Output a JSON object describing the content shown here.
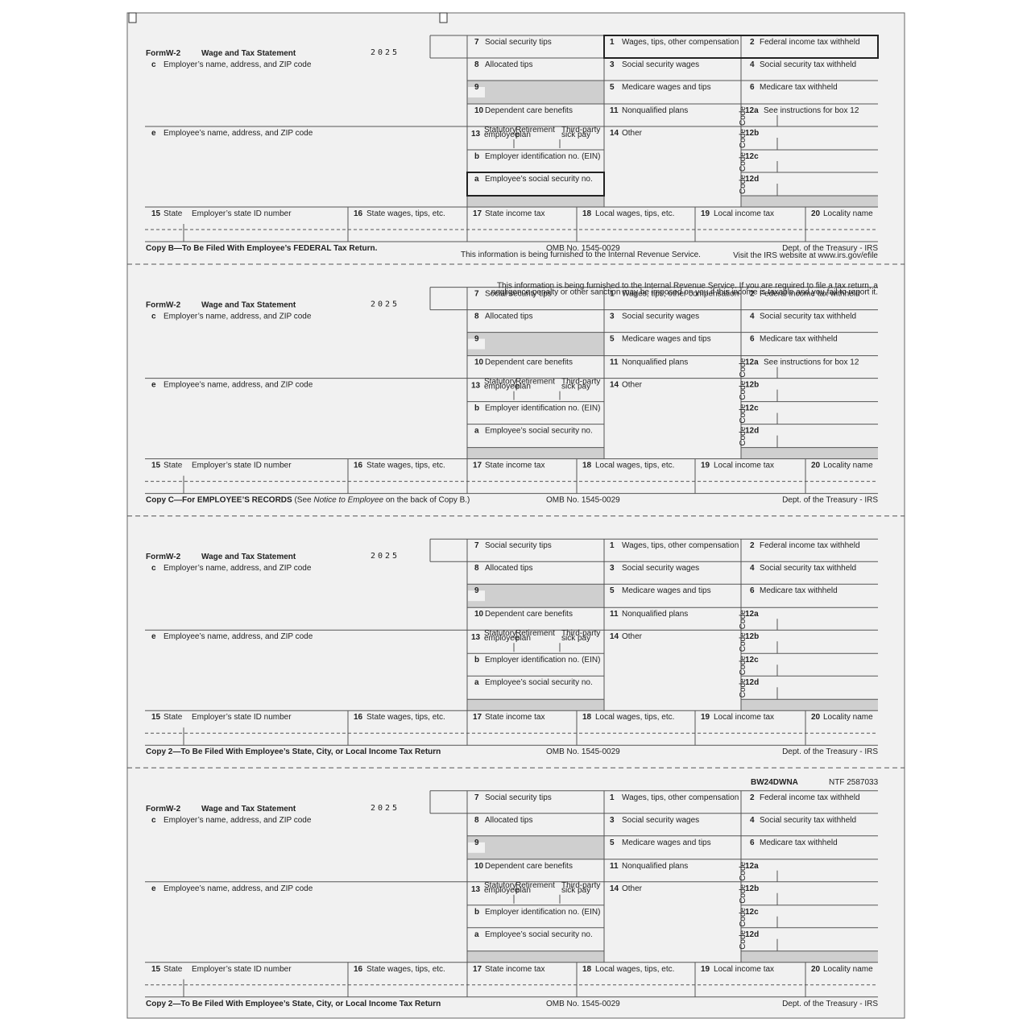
{
  "form": {
    "form_word": "Form",
    "form_id": "W-2",
    "title": "Wage and Tax Statement",
    "year": "2025",
    "code_label": "Code",
    "left": [
      {
        "num": "c",
        "label": "Employer’s name, address, and ZIP code"
      },
      {
        "num": "e",
        "label": "Employee’s name, address, and ZIP code"
      }
    ],
    "col_a": [
      {
        "num": "7",
        "label": "Social security tips"
      },
      {
        "num": "8",
        "label": "Allocated tips"
      },
      {
        "num": "9"
      },
      {
        "num": "10",
        "label": "Dependent care benefits"
      },
      {
        "num": "b",
        "label": "Employer identification no. (EIN)"
      },
      {
        "num": "a",
        "label": "Employee’s social security no."
      }
    ],
    "box13": {
      "num": "13",
      "options": [
        "Statutory employee",
        "Retirement plan",
        "Third-party sick pay"
      ]
    },
    "col_b": [
      {
        "num": "1",
        "label": "Wages, tips, other compensation"
      },
      {
        "num": "3",
        "label": "Social security wages"
      },
      {
        "num": "5",
        "label": "Medicare wages and tips"
      },
      {
        "num": "11",
        "label": "Nonqualified plans"
      },
      {
        "num": "14",
        "label": "Other"
      }
    ],
    "col_c": [
      {
        "num": "2",
        "label": "Federal income tax withheld"
      },
      {
        "num": "4",
        "label": "Social security tax withheld"
      },
      {
        "num": "6",
        "label": "Medicare tax withheld"
      },
      {
        "num": "12a"
      },
      {
        "num": "12b"
      },
      {
        "num": "12c"
      },
      {
        "num": "12d"
      }
    ],
    "state_row": [
      {
        "num": "15",
        "label": "State"
      },
      {
        "label": "Employer’s state ID number"
      },
      {
        "num": "16",
        "label": "State wages, tips, etc."
      },
      {
        "num": "17",
        "label": "State income tax"
      },
      {
        "num": "18",
        "label": "Local wages, tips, etc."
      },
      {
        "num": "19",
        "label": "Local income tax"
      },
      {
        "num": "20",
        "label": "Locality name"
      }
    ],
    "omb": "OMB No. 1545-0029",
    "dept": "Dept. of the Treasury - IRS"
  },
  "copies": [
    {
      "copy_text": [
        {
          "text": "Copy B—To Be Filed With Employee’s FEDERAL Tax Return.",
          "style": "bold"
        }
      ],
      "box12a_note": "See instructions for box 12",
      "furnished": "This information is being furnished to the Internal Revenue Service.",
      "irs_site": "Visit the IRS website at www.irs.gov/efile"
    },
    {
      "copy_text": [
        {
          "text": "Copy C—For EMPLOYEE’S RECORDS",
          "style": "bold"
        },
        {
          "text": " (See ",
          "style": "normal"
        },
        {
          "text": "Notice to Employee",
          "style": "italic"
        },
        {
          "text": " on the back of Copy B.)",
          "style": "normal"
        }
      ],
      "box12a_note": "See instructions for box 12",
      "notice": [
        "This information is being furnished to the Internal Revenue Service. If you are required to file a tax return, a",
        "negligence penalty or other sanction may be imposed on you if this income is taxable and you fail to report it."
      ]
    },
    {
      "copy_text": [
        {
          "text": "Copy 2—To Be Filed With Employee’s State, City, or Local Income Tax Return",
          "style": "bold"
        }
      ]
    },
    {
      "copy_text": [
        {
          "text": "Copy 2—To Be Filed With Employee’s State, City, or Local Income Tax Return",
          "style": "bold"
        }
      ],
      "product_code": "BW24DWNA",
      "ntf": "NTF 2587033"
    }
  ]
}
